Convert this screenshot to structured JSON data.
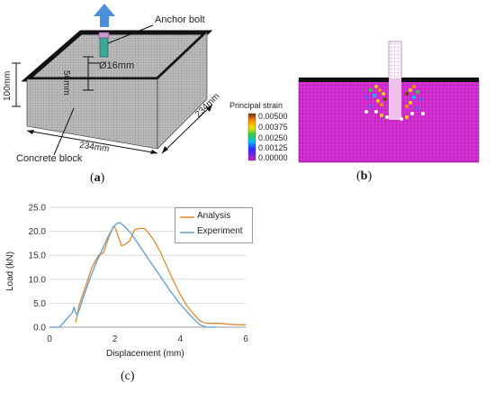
{
  "figure_a": {
    "label_anchor_bolt": "Anchor bolt",
    "label_diameter": "Ø16mm",
    "label_embed": "56mm",
    "label_height": "100mm",
    "label_width": "234mm",
    "label_depth": "234mm",
    "label_block": "Concrete block",
    "caption_open": "(",
    "caption_letter": "a",
    "caption_close": ")"
  },
  "figure_b": {
    "legend_title": "Principal strain",
    "legend_values": [
      "0.00500",
      "0.00375",
      "0.00250",
      "0.00125",
      "0.00000"
    ],
    "caption_open": "(",
    "caption_letter": "b",
    "caption_close": ")"
  },
  "figure_c": {
    "caption": "(c)",
    "colors": {
      "analysis": "#E08A2C",
      "experiment": "#5B9BD5"
    }
  },
  "chart_data": {
    "type": "line",
    "xlabel": "Displacement (mm)",
    "ylabel": "Load (kN)",
    "xlim": [
      0,
      6
    ],
    "ylim": [
      0,
      25
    ],
    "xticks": [
      "0",
      "2",
      "4",
      "6"
    ],
    "yticks": [
      "0.0",
      "5.0",
      "10.0",
      "15.0",
      "20.0",
      "25.0"
    ],
    "grid": "horizontal",
    "legend_position": "top-right",
    "series": [
      {
        "name": "Analysis",
        "color": "#E08A2C",
        "x": [
          0.8,
          0.85,
          0.9,
          1.1,
          1.3,
          1.5,
          1.65,
          1.8,
          1.95,
          2.0,
          2.1,
          2.2,
          2.3,
          2.45,
          2.6,
          2.75,
          2.9,
          3.05,
          3.2,
          3.4,
          3.6,
          3.8,
          4.0,
          4.2,
          4.4,
          4.6,
          4.8,
          4.95,
          5.2,
          5.5,
          5.8,
          6.0
        ],
        "y": [
          1.0,
          2.5,
          4.5,
          8.5,
          12.5,
          15.0,
          15.5,
          18.5,
          21.0,
          20.8,
          19.0,
          17.0,
          17.2,
          18.0,
          20.3,
          20.6,
          20.6,
          19.5,
          18.0,
          15.5,
          12.5,
          9.5,
          6.8,
          4.5,
          2.8,
          1.3,
          0.8,
          0.8,
          0.8,
          0.6,
          0.5,
          0.5
        ]
      },
      {
        "name": "Experiment",
        "color": "#5B9BD5",
        "x": [
          0.0,
          0.3,
          0.5,
          0.7,
          0.75,
          0.8,
          0.85,
          1.0,
          1.2,
          1.4,
          1.6,
          1.8,
          1.95,
          2.05,
          2.15,
          2.3,
          2.5,
          2.8,
          3.1,
          3.4,
          3.7,
          4.0,
          4.3,
          4.6,
          4.8,
          5.0,
          5.1
        ],
        "y": [
          0.0,
          0.0,
          1.5,
          3.0,
          4.2,
          3.0,
          2.5,
          5.5,
          9.5,
          13.0,
          16.0,
          19.0,
          20.8,
          21.6,
          21.8,
          21.0,
          19.5,
          16.5,
          13.5,
          10.5,
          7.5,
          4.8,
          2.5,
          0.5,
          0.0,
          0.0,
          0.0
        ]
      }
    ]
  }
}
